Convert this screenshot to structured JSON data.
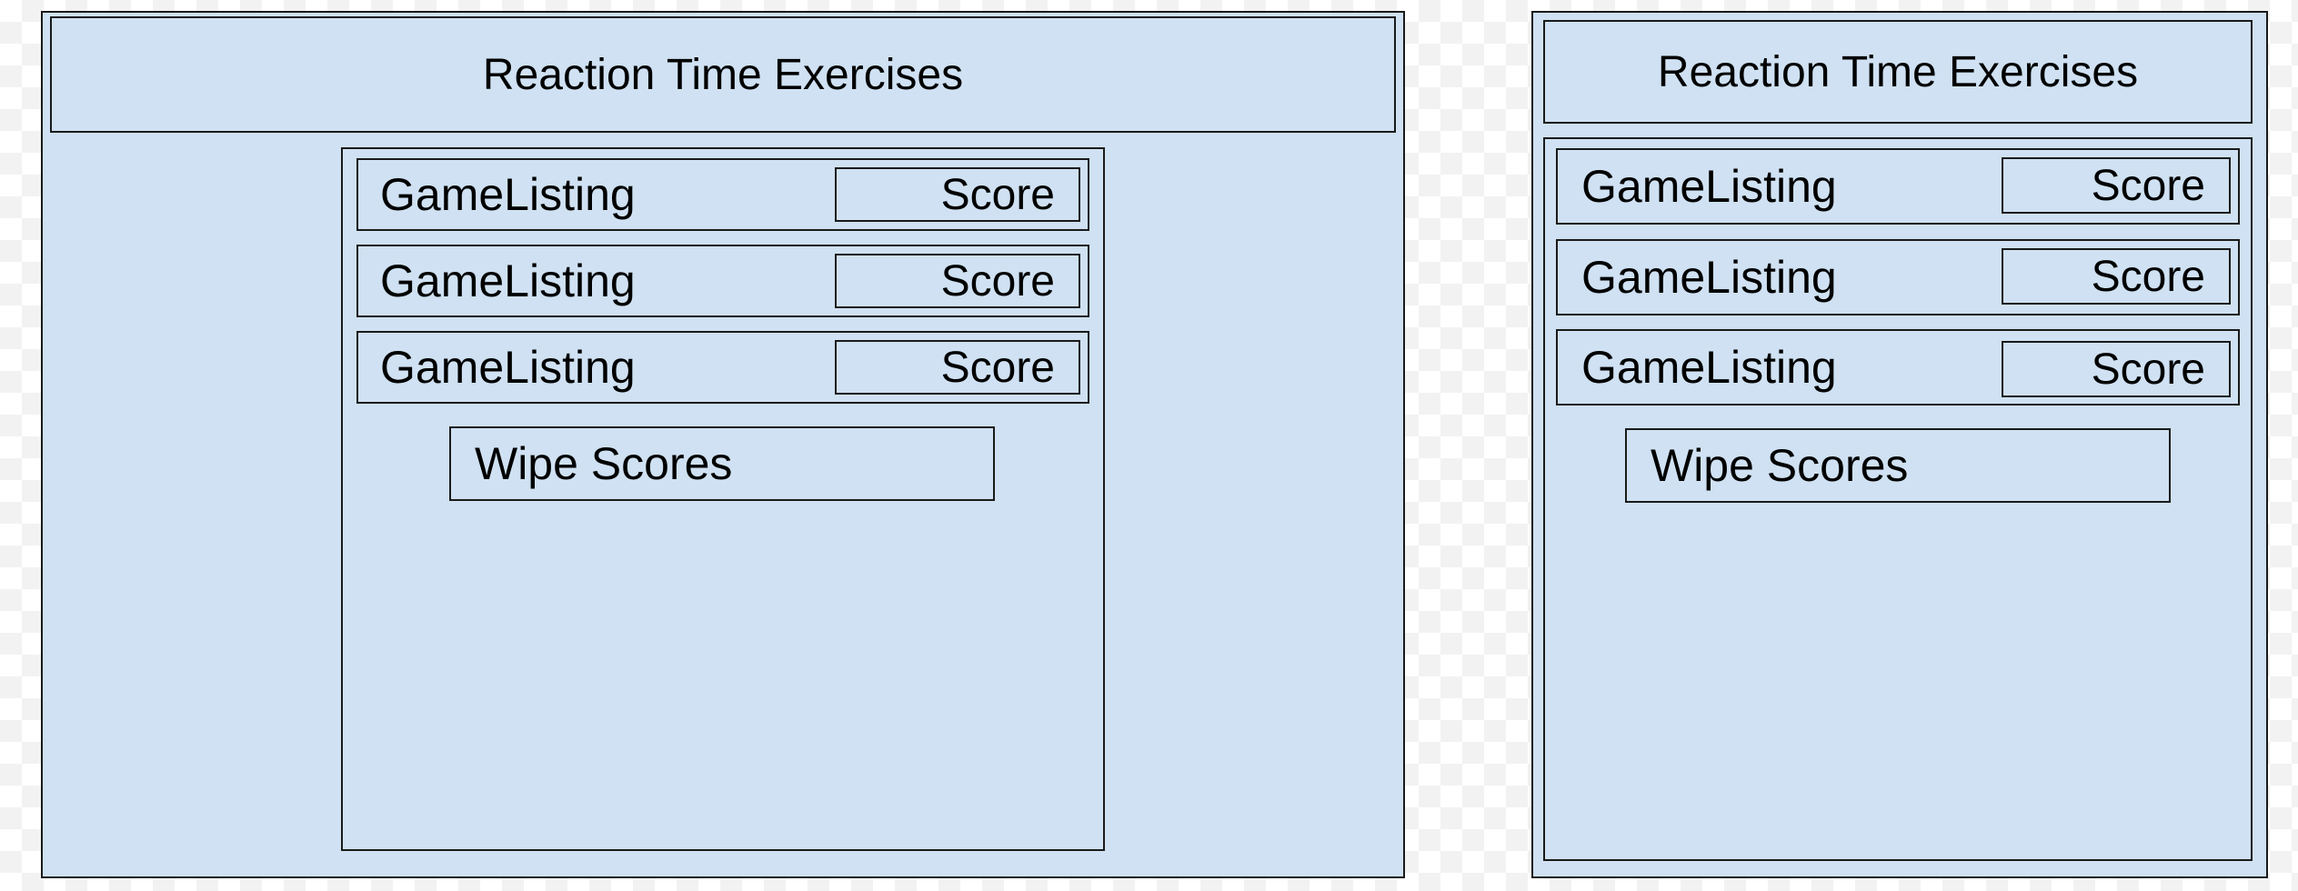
{
  "wireframes": [
    {
      "title": "Reaction Time Exercises",
      "games": [
        {
          "name": "GameListing",
          "score_label": "Score"
        },
        {
          "name": "GameListing",
          "score_label": "Score"
        },
        {
          "name": "GameListing",
          "score_label": "Score"
        }
      ],
      "wipe_button": "Wipe Scores"
    },
    {
      "title": "Reaction Time Exercises",
      "games": [
        {
          "name": "GameListing",
          "score_label": "Score"
        },
        {
          "name": "GameListing",
          "score_label": "Score"
        },
        {
          "name": "GameListing",
          "score_label": "Score"
        }
      ],
      "wipe_button": "Wipe Scores"
    }
  ],
  "colors": {
    "panel_fill": "#cfe1f2",
    "border": "#1a1a1a",
    "canvas_checker": "#f2f2f2"
  }
}
